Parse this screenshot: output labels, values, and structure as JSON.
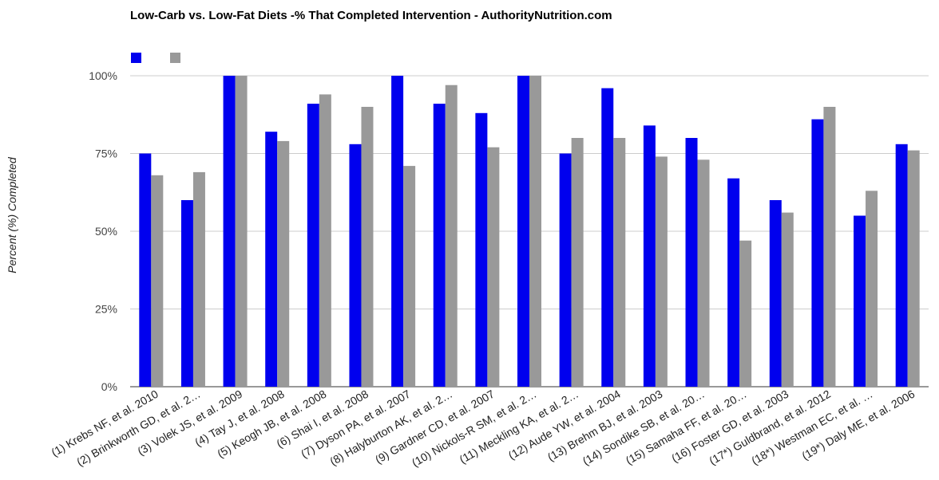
{
  "chart_data": {
    "type": "bar",
    "title": "Low-Carb vs. Low-Fat Diets -% That Completed Intervention - AuthorityNutrition.com",
    "ylabel": "Percent (%) Completed",
    "xlabel": "",
    "ylim": [
      0,
      1
    ],
    "y_ticks": [
      "0%",
      "25%",
      "50%",
      "75%",
      "100%"
    ],
    "grid": true,
    "legend_position": "top-left",
    "categories": [
      "(1) Krebs NF, et al. 2010",
      "(2) Brinkworth GD, et al. 2…",
      "(3) Volek JS, et al. 2009",
      "(4) Tay J, et al. 2008",
      "(5) Keogh JB, et al. 2008",
      "(6) Shai I, et al. 2008",
      "(7) Dyson PA, et al. 2007",
      "(8) Halyburton AK, et al. 2…",
      "(9) Gardner CD, et al. 2007",
      "(10) Nickols-R SM, et al. 2…",
      "(11) Meckling KA, et al. 2…",
      "(12) Aude YW, et al. 2004",
      "(13) Brehm BJ, et al. 2003",
      "(14) Sondike SB, et al. 20…",
      "(15) Samaha FF, et al. 20…",
      "(16) Foster GD, et al. 2003",
      "(17*) Guldbrand, et al. 2012",
      "(18*) Westman EC, et al. …",
      "(19*) Daly ME, et al. 2006"
    ],
    "series": [
      {
        "color": "#0000ee",
        "values": [
          0.75,
          0.6,
          1.0,
          0.82,
          0.91,
          0.78,
          1.0,
          0.91,
          0.88,
          1.0,
          0.75,
          0.96,
          0.84,
          0.8,
          0.67,
          0.6,
          0.86,
          0.55,
          0.78
        ]
      },
      {
        "color": "#999999",
        "values": [
          0.68,
          0.69,
          1.0,
          0.79,
          0.94,
          0.9,
          0.71,
          0.97,
          0.77,
          1.0,
          0.8,
          0.8,
          0.74,
          0.73,
          0.47,
          0.56,
          0.9,
          0.63,
          0.76
        ]
      }
    ]
  }
}
